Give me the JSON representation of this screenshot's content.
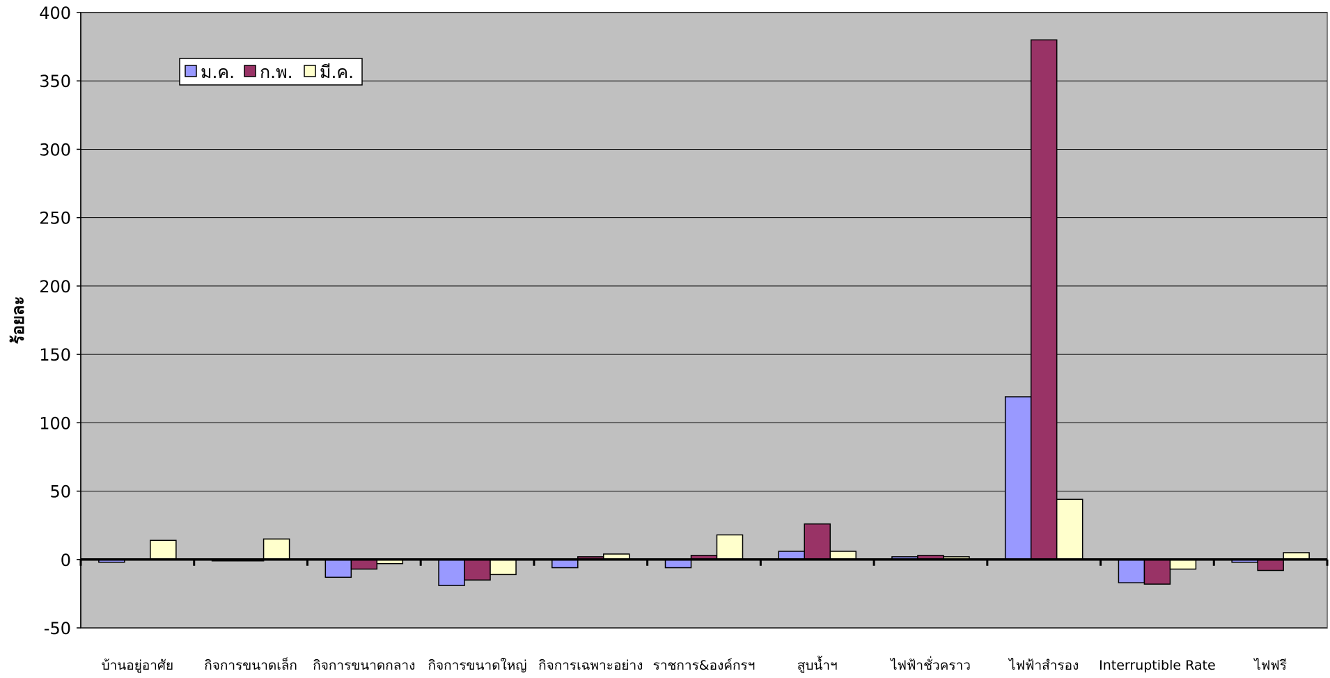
{
  "chart_data": {
    "type": "bar",
    "title": "",
    "xlabel": "",
    "ylabel": "ร้อยละ",
    "ylim": [
      -50,
      400
    ],
    "yticks": [
      -50,
      0,
      50,
      100,
      150,
      200,
      250,
      300,
      350,
      400
    ],
    "grid": true,
    "legend_position": "top-left",
    "categories": [
      "บ้านอยู่อาศัย",
      "กิจการขนาดเล็ก",
      "กิจการขนาดกลาง",
      "กิจการขนาดใหญ่",
      "กิจการเฉพาะอย่าง",
      "ราชการ&องค์กรฯ",
      "สูบน้ำฯ",
      "ไฟฟ้าชั่วคราว",
      "ไฟฟ้าสำรอง",
      "Interruptible Rate",
      "ไฟฟรี"
    ],
    "series": [
      {
        "name": "ม.ค.",
        "color": "#9999ff",
        "values": [
          -2,
          -1,
          -13,
          -19,
          -6,
          -6,
          6,
          2,
          119,
          -17,
          -2
        ]
      },
      {
        "name": "ก.พ.",
        "color": "#993366",
        "values": [
          0,
          -1,
          -7,
          -15,
          2,
          3,
          26,
          3,
          380,
          -18,
          -8
        ]
      },
      {
        "name": "มี.ค.",
        "color": "#ffffcc",
        "values": [
          14,
          15,
          -3,
          -11,
          4,
          18,
          6,
          2,
          44,
          -7,
          5
        ]
      }
    ],
    "colors": {
      "plot_background": "#c0c0c0",
      "gridline": "#000000",
      "bar_stroke": "#000000"
    }
  }
}
